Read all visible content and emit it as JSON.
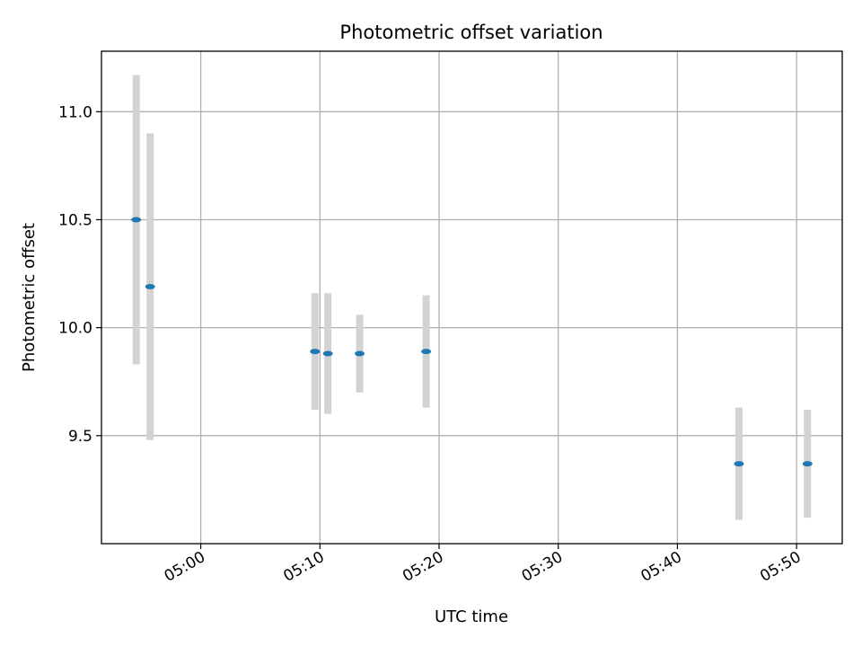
{
  "chart_data": {
    "type": "scatter",
    "title": "Photometric offset variation",
    "xlabel": "UTC time",
    "ylabel": "Photometric offset",
    "x_tick_labels": [
      "05:00",
      "05:10",
      "05:20",
      "05:30",
      "05:40",
      "05:50"
    ],
    "y_ticks": [
      9.5,
      10.0,
      10.5,
      11.0
    ],
    "y_tick_labels": [
      "9.5",
      "10.0",
      "10.5",
      "11.0"
    ],
    "xlim": [
      "04:51:40",
      "05:53:50"
    ],
    "ylim": [
      9.0,
      11.28
    ],
    "grid": true,
    "points": [
      {
        "x": "04:54:35",
        "y": 10.5,
        "yerr": 0.67
      },
      {
        "x": "04:55:45",
        "y": 10.19,
        "yerr": 0.71
      },
      {
        "x": "05:09:35",
        "y": 9.89,
        "yerr": 0.27
      },
      {
        "x": "05:10:40",
        "y": 9.88,
        "yerr": 0.28
      },
      {
        "x": "05:13:20",
        "y": 9.88,
        "yerr": 0.18
      },
      {
        "x": "05:18:55",
        "y": 9.89,
        "yerr": 0.26
      },
      {
        "x": "05:45:10",
        "y": 9.37,
        "yerr": 0.26
      },
      {
        "x": "05:50:55",
        "y": 9.37,
        "yerr": 0.25
      }
    ],
    "colors": {
      "marker": "#1f77b4",
      "errorbar": "#d3d3d3",
      "grid": "#b0b0b0"
    }
  }
}
